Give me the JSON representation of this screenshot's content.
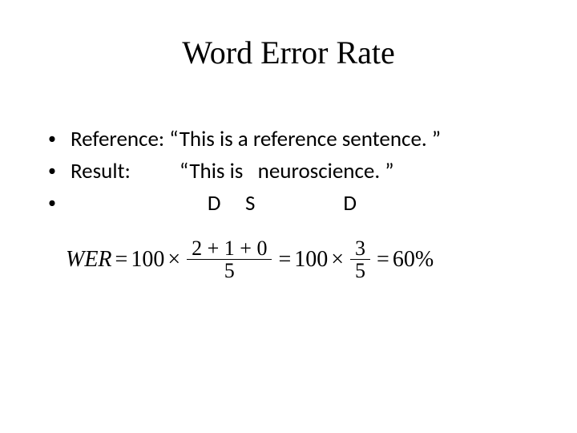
{
  "background_color": "#ffffff",
  "text_color": "#000000",
  "title": {
    "text": "Word Error Rate",
    "font_family": "Times New Roman",
    "font_size_pt": 30,
    "font_weight": "normal"
  },
  "bullets": {
    "font_family": "Calibri",
    "font_size_pt": 20,
    "marker": "•",
    "items": [
      {
        "label": "Reference:",
        "value": "“This is a reference sentence. ”"
      },
      {
        "label": "Result:",
        "value": "“This is   neuroscience. ”"
      },
      {
        "label": "",
        "value": "D     S                  D"
      }
    ],
    "label_col_width_ch": 13,
    "line3_indent_ch": 16
  },
  "formula": {
    "font_family": "Times New Roman",
    "font_size_pt": 21,
    "lhs_var": "WER",
    "eq": "=",
    "const100": "100",
    "times": "×",
    "frac1": {
      "num": "2 + 1 + 0",
      "den": "5"
    },
    "frac2": {
      "num": "3",
      "den": "5"
    },
    "result": "60%"
  }
}
